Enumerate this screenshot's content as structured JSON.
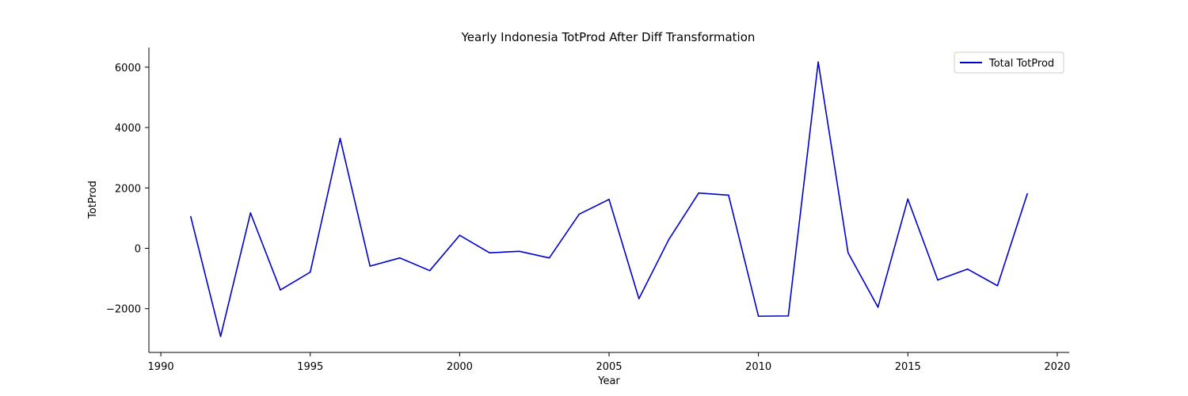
{
  "chart_data": {
    "type": "line",
    "title": "Yearly Indonesia TotProd After Diff Transformation",
    "xlabel": "Year",
    "ylabel": "TotProd",
    "xlim": [
      1989.6,
      2020.4
    ],
    "ylim": [
      -3450,
      6650
    ],
    "xticks": [
      1990,
      1995,
      2000,
      2005,
      2010,
      2015,
      2020
    ],
    "yticks": [
      -2000,
      0,
      2000,
      4000,
      6000
    ],
    "ytick_labels": [
      "−2000",
      "0",
      "2000",
      "4000",
      "6000"
    ],
    "grid": false,
    "legend_position": "top-right",
    "series": [
      {
        "name": "Total TotProd",
        "color": "#0000cd",
        "x": [
          1991,
          1992,
          1993,
          1994,
          1995,
          1996,
          1997,
          1998,
          1999,
          2000,
          2001,
          2002,
          2003,
          2004,
          2005,
          2006,
          2007,
          2008,
          2009,
          2010,
          2011,
          2012,
          2013,
          2014,
          2015,
          2016,
          2017,
          2018,
          2019
        ],
        "y": [
          1050,
          -2920,
          1170,
          -1380,
          -790,
          3640,
          -590,
          -320,
          -740,
          430,
          -150,
          -100,
          -320,
          1130,
          1620,
          -1670,
          290,
          1830,
          1760,
          -2250,
          -2240,
          6170,
          -150,
          -1950,
          1630,
          -1050,
          -690,
          -1240,
          1810
        ]
      }
    ]
  }
}
